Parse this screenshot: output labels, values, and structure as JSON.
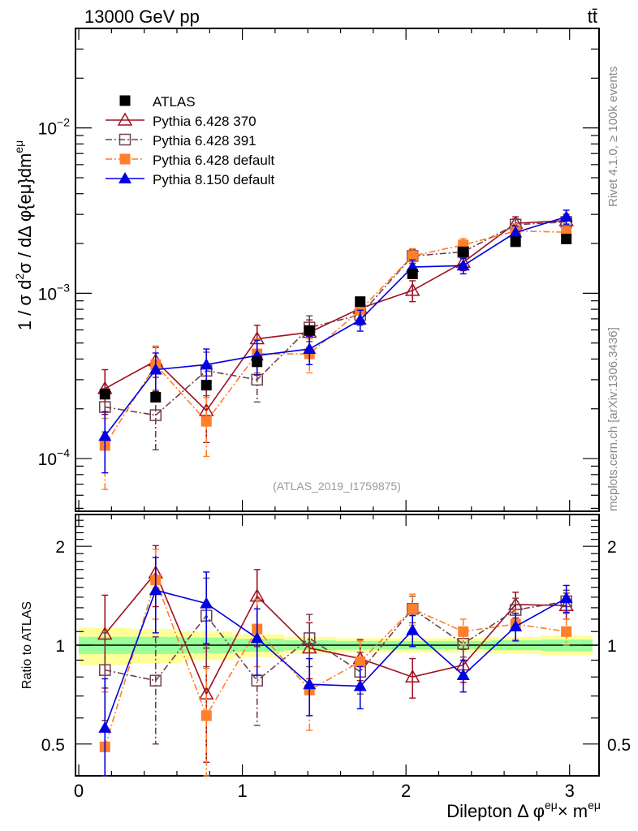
{
  "header": {
    "left_title": "13000 GeV pp",
    "right_title": "tt̄"
  },
  "side_labels": {
    "rivet": "Rivet 4.1.0, ≥ 100k events",
    "mcplots": "mcplots.cern.ch [arXiv:1306.3436]"
  },
  "analysis_label": "(ATLAS_2019_I1759875)",
  "colors": {
    "atlas": "#000000",
    "p6_370": "#a01020",
    "p6_391": "#704050",
    "p6_default": "#ff7f2a",
    "p8_default": "#0000e0",
    "band_inner": "#99ff99",
    "band_outer": "#ffff99"
  },
  "chart_data": [
    {
      "type": "line",
      "panel": "main",
      "title": "13000 GeV pp  tt̄",
      "xlabel": "Dilepton Δ φ^{eμ}× m^{eμ}",
      "ylabel": "1 / σ  d²σ / dΔ φ{eμ}dm^{eμ}",
      "xlim": [
        -0.02,
        3.18
      ],
      "ylim": [
        4.8e-05,
        0.04
      ],
      "yscale": "log",
      "ytick_labels": [
        {
          "value": 0.0001,
          "base": "10",
          "exp": "−4"
        },
        {
          "value": 0.001,
          "base": "10",
          "exp": "−3"
        },
        {
          "value": 0.01,
          "base": "10",
          "exp": "−2"
        }
      ],
      "xticks": [
        0,
        1,
        2,
        3
      ],
      "legend_position": "top-left",
      "x": [
        0.16,
        0.47,
        0.78,
        1.09,
        1.41,
        1.72,
        2.04,
        2.35,
        2.67,
        2.98
      ],
      "series": [
        {
          "name": "ATLAS",
          "key": "atlas",
          "marker": "filled-square",
          "line": "none",
          "values": [
            0.000245,
            0.000235,
            0.000278,
            0.000385,
            0.000595,
            0.00089,
            0.00131,
            0.00178,
            0.00205,
            0.00213
          ],
          "err": [
            1e-05,
            1e-05,
            1e-05,
            1e-05,
            2e-05,
            3e-05,
            4e-05,
            5e-05,
            5e-05,
            6e-05
          ]
        },
        {
          "name": "Pythia 6.428 370",
          "key": "p6_370",
          "marker": "open-triangle",
          "line": "solid",
          "values": [
            0.000265,
            0.00039,
            0.000195,
            0.00053,
            0.00058,
            0.00081,
            0.00104,
            0.00154,
            0.00265,
            0.00275
          ],
          "err": [
            8e-05,
            8e-05,
            7e-05,
            0.00011,
            0.00011,
            0.00011,
            0.00015,
            0.00017,
            0.00025,
            0.00025
          ]
        },
        {
          "name": "Pythia 6.428 391",
          "key": "p6_391",
          "marker": "open-square",
          "line": "dash-dot",
          "values": [
            0.000205,
            0.000183,
            0.00034,
            0.0003,
            0.00062,
            0.00074,
            0.00168,
            0.00178,
            0.0026,
            0.0027
          ],
          "err": [
            6e-05,
            7e-05,
            0.0001,
            8e-05,
            0.00011,
            0.0001,
            0.00016,
            0.00016,
            0.00022,
            0.00022
          ]
        },
        {
          "name": "Pythia 6.428 default",
          "key": "p6_default",
          "marker": "filled-square",
          "line": "dash-dot",
          "values": [
            0.00012,
            0.00037,
            0.000168,
            0.00043,
            0.00043,
            0.00079,
            0.00168,
            0.00196,
            0.00238,
            0.00234
          ],
          "err": [
            5.5e-05,
            0.00011,
            6.5e-05,
            0.0001,
            0.0001,
            0.00012,
            0.00018,
            0.00018,
            0.00025,
            0.0002
          ]
        },
        {
          "name": "Pythia 8.150 default",
          "key": "p8_default",
          "marker": "filled-triangle",
          "line": "solid",
          "values": [
            0.000137,
            0.000345,
            0.00037,
            0.00042,
            0.00046,
            0.00069,
            0.00144,
            0.00147,
            0.00233,
            0.0029
          ],
          "err": [
            5.5e-05,
            9e-05,
            9e-05,
            0.0001,
            9e-05,
            0.0001,
            0.00015,
            0.00016,
            0.00022,
            0.00028
          ]
        }
      ]
    },
    {
      "type": "line",
      "panel": "ratio",
      "ylabel": "Ratio to ATLAS",
      "xlabel": "Dilepton Δ φ^{eμ}× m^{eμ}",
      "xlim": [
        -0.02,
        3.18
      ],
      "ylim": [
        0.4,
        2.5
      ],
      "yscale": "log",
      "ytick_labels": [
        {
          "value": 0.5,
          "label": "0.5"
        },
        {
          "value": 1,
          "label": "1"
        },
        {
          "value": 2,
          "label": "2"
        }
      ],
      "xtick_labels": [
        "0",
        "1",
        "2",
        "3"
      ],
      "bin_edges": [
        -0.0,
        0.314,
        0.628,
        0.942,
        1.256,
        1.57,
        1.884,
        2.198,
        2.512,
        2.826,
        3.14
      ],
      "band_inner_halfwidth": [
        0.06,
        0.06,
        0.055,
        0.045,
        0.035,
        0.03,
        0.03,
        0.03,
        0.035,
        0.04
      ],
      "band_outer_halfwidth": [
        0.13,
        0.12,
        0.1,
        0.08,
        0.06,
        0.05,
        0.05,
        0.05,
        0.06,
        0.07
      ],
      "x": [
        0.16,
        0.47,
        0.78,
        1.09,
        1.41,
        1.72,
        2.04,
        2.35,
        2.67,
        2.98
      ],
      "series": [
        {
          "name": "Pythia 6.428 370",
          "key": "p6_370",
          "marker": "open-triangle",
          "line": "solid",
          "values": [
            1.08,
            1.66,
            0.71,
            1.41,
            0.98,
            0.91,
            0.8,
            0.87,
            1.33,
            1.32
          ],
          "err": [
            0.34,
            0.35,
            0.27,
            0.29,
            0.19,
            0.13,
            0.11,
            0.1,
            0.12,
            0.12
          ]
        },
        {
          "name": "Pythia 6.428 391",
          "key": "p6_391",
          "marker": "open-square",
          "line": "dash-dot",
          "values": [
            0.84,
            0.78,
            1.23,
            0.78,
            1.05,
            0.83,
            1.29,
            1.01,
            1.28,
            1.36
          ],
          "err": [
            0.25,
            0.28,
            0.37,
            0.21,
            0.19,
            0.12,
            0.12,
            0.09,
            0.11,
            0.11
          ]
        },
        {
          "name": "Pythia 6.428 default",
          "key": "p6_default",
          "marker": "filled-square",
          "line": "dash-dot",
          "values": [
            0.49,
            1.58,
            0.61,
            1.12,
            0.73,
            0.89,
            1.29,
            1.1,
            1.16,
            1.1
          ],
          "err": [
            0.23,
            0.38,
            0.24,
            0.26,
            0.18,
            0.14,
            0.14,
            0.1,
            0.12,
            0.1
          ]
        },
        {
          "name": "Pythia 8.150 default",
          "key": "p8_default",
          "marker": "filled-triangle",
          "line": "solid",
          "values": [
            0.56,
            1.47,
            1.34,
            1.05,
            0.76,
            0.75,
            1.11,
            0.81,
            1.14,
            1.39
          ],
          "err": [
            0.23,
            0.38,
            0.33,
            0.24,
            0.15,
            0.11,
            0.12,
            0.09,
            0.11,
            0.13
          ]
        }
      ]
    }
  ]
}
